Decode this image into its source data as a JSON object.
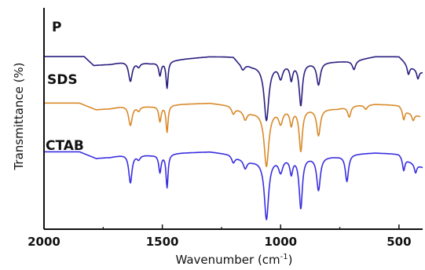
{
  "chart_data": {
    "type": "line",
    "title": "",
    "xlabel": "Wavenumber (cm",
    "xlabel_sup": "-1",
    "xlabel_close": ")",
    "ylabel": "Transmittance (%)",
    "xlim": [
      2000,
      400
    ],
    "x_reversed": true,
    "x_ticks": [
      2000,
      1500,
      1000,
      500
    ],
    "x_tick_labels": [
      "2000",
      "1500",
      "1000",
      "500"
    ],
    "ylim": [
      0,
      100
    ],
    "y_ticks_shown": false,
    "grid": false,
    "legend": "none",
    "series": [
      {
        "name": "P",
        "color": "#2a1f80",
        "offset": 78,
        "x_end": 400,
        "baseline": 20,
        "drift": [
          [
            2000,
            20
          ],
          [
            1830,
            20
          ],
          [
            1790,
            16
          ],
          [
            1720,
            16.5
          ],
          [
            1650,
            18
          ],
          [
            1550,
            17
          ],
          [
            1400,
            19
          ],
          [
            1300,
            20
          ],
          [
            1200,
            20
          ],
          [
            1180,
            18
          ],
          [
            1120,
            16
          ],
          [
            950,
            17
          ],
          [
            700,
            18
          ],
          [
            600,
            20
          ],
          [
            500,
            20
          ],
          [
            460,
            16
          ],
          [
            400,
            13
          ]
        ],
        "peaks": [
          {
            "x": 1635,
            "depth": 9,
            "width": 9
          },
          {
            "x": 1600,
            "depth": 2,
            "width": 8
          },
          {
            "x": 1510,
            "depth": 6,
            "width": 6
          },
          {
            "x": 1480,
            "depth": 12,
            "width": 5
          },
          {
            "x": 1160,
            "depth": 3,
            "width": 10
          },
          {
            "x": 1060,
            "depth": 25,
            "width": 12
          },
          {
            "x": 1000,
            "depth": 6,
            "width": 10
          },
          {
            "x": 955,
            "depth": 7,
            "width": 7
          },
          {
            "x": 915,
            "depth": 19,
            "width": 8
          },
          {
            "x": 840,
            "depth": 10,
            "width": 9
          },
          {
            "x": 690,
            "depth": 4,
            "width": 8
          },
          {
            "x": 460,
            "depth": 4,
            "width": 6
          },
          {
            "x": 420,
            "depth": 4,
            "width": 6
          }
        ]
      },
      {
        "name": "SDS",
        "color": "#d98a2a",
        "offset": 57,
        "x_end": 410,
        "baseline": 14,
        "drift": [
          [
            2000,
            14
          ],
          [
            1850,
            14
          ],
          [
            1780,
            11
          ],
          [
            1720,
            11.5
          ],
          [
            1650,
            13
          ],
          [
            1550,
            12.5
          ],
          [
            1420,
            13.5
          ],
          [
            1300,
            14
          ],
          [
            1220,
            13
          ],
          [
            1180,
            11.5
          ],
          [
            1120,
            10
          ],
          [
            980,
            11.5
          ],
          [
            760,
            11.5
          ],
          [
            700,
            13
          ],
          [
            600,
            13.5
          ],
          [
            500,
            13
          ],
          [
            460,
            10
          ],
          [
            410,
            8
          ]
        ],
        "peaks": [
          {
            "x": 1635,
            "depth": 9,
            "width": 9
          },
          {
            "x": 1600,
            "depth": 2,
            "width": 8
          },
          {
            "x": 1510,
            "depth": 7,
            "width": 6
          },
          {
            "x": 1480,
            "depth": 12,
            "width": 5
          },
          {
            "x": 1200,
            "depth": 3,
            "width": 8
          },
          {
            "x": 1150,
            "depth": 4,
            "width": 9
          },
          {
            "x": 1060,
            "depth": 25,
            "width": 12
          },
          {
            "x": 1000,
            "depth": 6,
            "width": 10
          },
          {
            "x": 955,
            "depth": 7,
            "width": 7
          },
          {
            "x": 915,
            "depth": 19,
            "width": 8
          },
          {
            "x": 840,
            "depth": 12,
            "width": 9
          },
          {
            "x": 710,
            "depth": 5,
            "width": 8
          },
          {
            "x": 640,
            "depth": 2,
            "width": 8
          },
          {
            "x": 480,
            "depth": 5,
            "width": 6
          },
          {
            "x": 440,
            "depth": 3,
            "width": 6
          }
        ]
      },
      {
        "name": "CTAB",
        "color": "#3a2fe0",
        "offset": 35,
        "x_end": 400,
        "baseline": 14,
        "drift": [
          [
            2000,
            14
          ],
          [
            1850,
            14
          ],
          [
            1780,
            11
          ],
          [
            1720,
            11.5
          ],
          [
            1650,
            13
          ],
          [
            1550,
            12.5
          ],
          [
            1420,
            13.5
          ],
          [
            1300,
            14
          ],
          [
            1220,
            13
          ],
          [
            1180,
            11.5
          ],
          [
            1120,
            10
          ],
          [
            980,
            11.5
          ],
          [
            760,
            12
          ],
          [
            700,
            13
          ],
          [
            600,
            13.5
          ],
          [
            500,
            13
          ],
          [
            460,
            10
          ],
          [
            400,
            7
          ]
        ],
        "peaks": [
          {
            "x": 1635,
            "depth": 13,
            "width": 8
          },
          {
            "x": 1600,
            "depth": 2,
            "width": 8
          },
          {
            "x": 1510,
            "depth": 8,
            "width": 6
          },
          {
            "x": 1480,
            "depth": 15,
            "width": 5
          },
          {
            "x": 1200,
            "depth": 3,
            "width": 8
          },
          {
            "x": 1150,
            "depth": 4,
            "width": 9
          },
          {
            "x": 1060,
            "depth": 27,
            "width": 11
          },
          {
            "x": 1000,
            "depth": 6,
            "width": 10
          },
          {
            "x": 955,
            "depth": 7,
            "width": 7
          },
          {
            "x": 915,
            "depth": 23,
            "width": 8
          },
          {
            "x": 840,
            "depth": 15,
            "width": 9
          },
          {
            "x": 720,
            "depth": 12,
            "width": 8
          },
          {
            "x": 480,
            "depth": 6,
            "width": 6
          },
          {
            "x": 430,
            "depth": 4,
            "width": 6
          }
        ]
      }
    ]
  }
}
